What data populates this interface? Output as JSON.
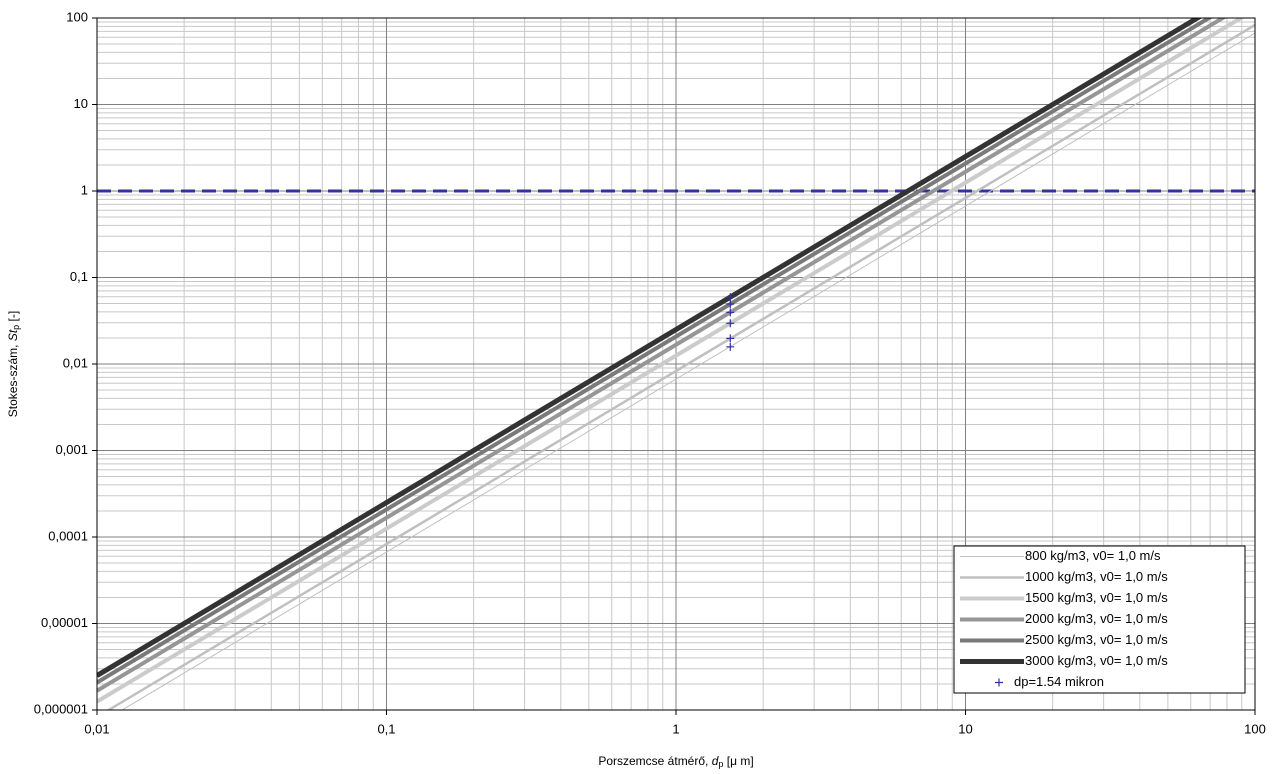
{
  "chart_data": {
    "type": "line",
    "log_x": true,
    "log_y": true,
    "grid": true,
    "minor_grid": true,
    "xlabel": {
      "text": "Porszemcse átmérő, ",
      "symbol": "d",
      "subscript": "p",
      "unit": "[μ m]"
    },
    "ylabel": {
      "text": "Stokes-szám, ",
      "symbol": "St",
      "subscript": "p",
      "unit": "[-]"
    },
    "xlim": [
      0.01,
      100
    ],
    "ylim": [
      1e-06,
      100
    ],
    "xticks": [
      {
        "value": 0.01,
        "label": "0,01"
      },
      {
        "value": 0.1,
        "label": "0,1"
      },
      1,
      10,
      100
    ],
    "yticks": [
      {
        "value": 1e-06,
        "label": "0,000001"
      },
      {
        "value": 1e-05,
        "label": "0,00001"
      },
      {
        "value": 0.0001,
        "label": "0,0001"
      },
      {
        "value": 0.001,
        "label": "0,001"
      },
      {
        "value": 0.01,
        "label": "0,01"
      },
      {
        "value": 0.1,
        "label": "0,1"
      },
      1,
      10,
      100
    ],
    "x": [
      0.01,
      0.1,
      1,
      10,
      100
    ],
    "reference_line": {
      "value": 1,
      "color": "#333399"
    },
    "legend": "lower right",
    "series": [
      {
        "name": "800 kg/m3, v0= 1,0 m/s",
        "color": "#c0c0c0",
        "width": 1,
        "values": [
          6.7e-07,
          6.7e-05,
          0.0067,
          0.67,
          67
        ]
      },
      {
        "name": "1000 kg/m3, v0= 1,0 m/s",
        "color": "#c0c0c0",
        "width": 2.5,
        "values": [
          8.3e-07,
          8.3e-05,
          0.0083,
          0.83,
          83
        ]
      },
      {
        "name": "1500 kg/m3, v0= 1,0 m/s",
        "color": "#cbcbcb",
        "width": 4,
        "values": [
          1.25e-06,
          0.000125,
          0.0125,
          1.25,
          125
        ]
      },
      {
        "name": "2000 kg/m3, v0= 1,0 m/s",
        "color": "#969696",
        "width": 4,
        "values": [
          1.67e-06,
          0.000167,
          0.0167,
          1.67,
          167
        ]
      },
      {
        "name": "2500 kg/m3, v0= 1,0 m/s",
        "color": "#7a7a7a",
        "width": 4,
        "values": [
          2.08e-06,
          0.000208,
          0.0208,
          2.08,
          208
        ]
      },
      {
        "name": "3000 kg/m3, v0= 1,0 m/s",
        "color": "#333333",
        "width": 5,
        "values": [
          2.5e-06,
          0.00025,
          0.025,
          2.5,
          250
        ]
      },
      {
        "name": "dp=1.54 mikron",
        "color": "#333399",
        "marker": "+",
        "x": [
          1.54,
          1.54,
          1.54,
          1.54,
          1.54,
          1.54
        ],
        "values": [
          0.0158,
          0.0198,
          0.0296,
          0.0395,
          0.0494,
          0.0593
        ]
      }
    ]
  }
}
